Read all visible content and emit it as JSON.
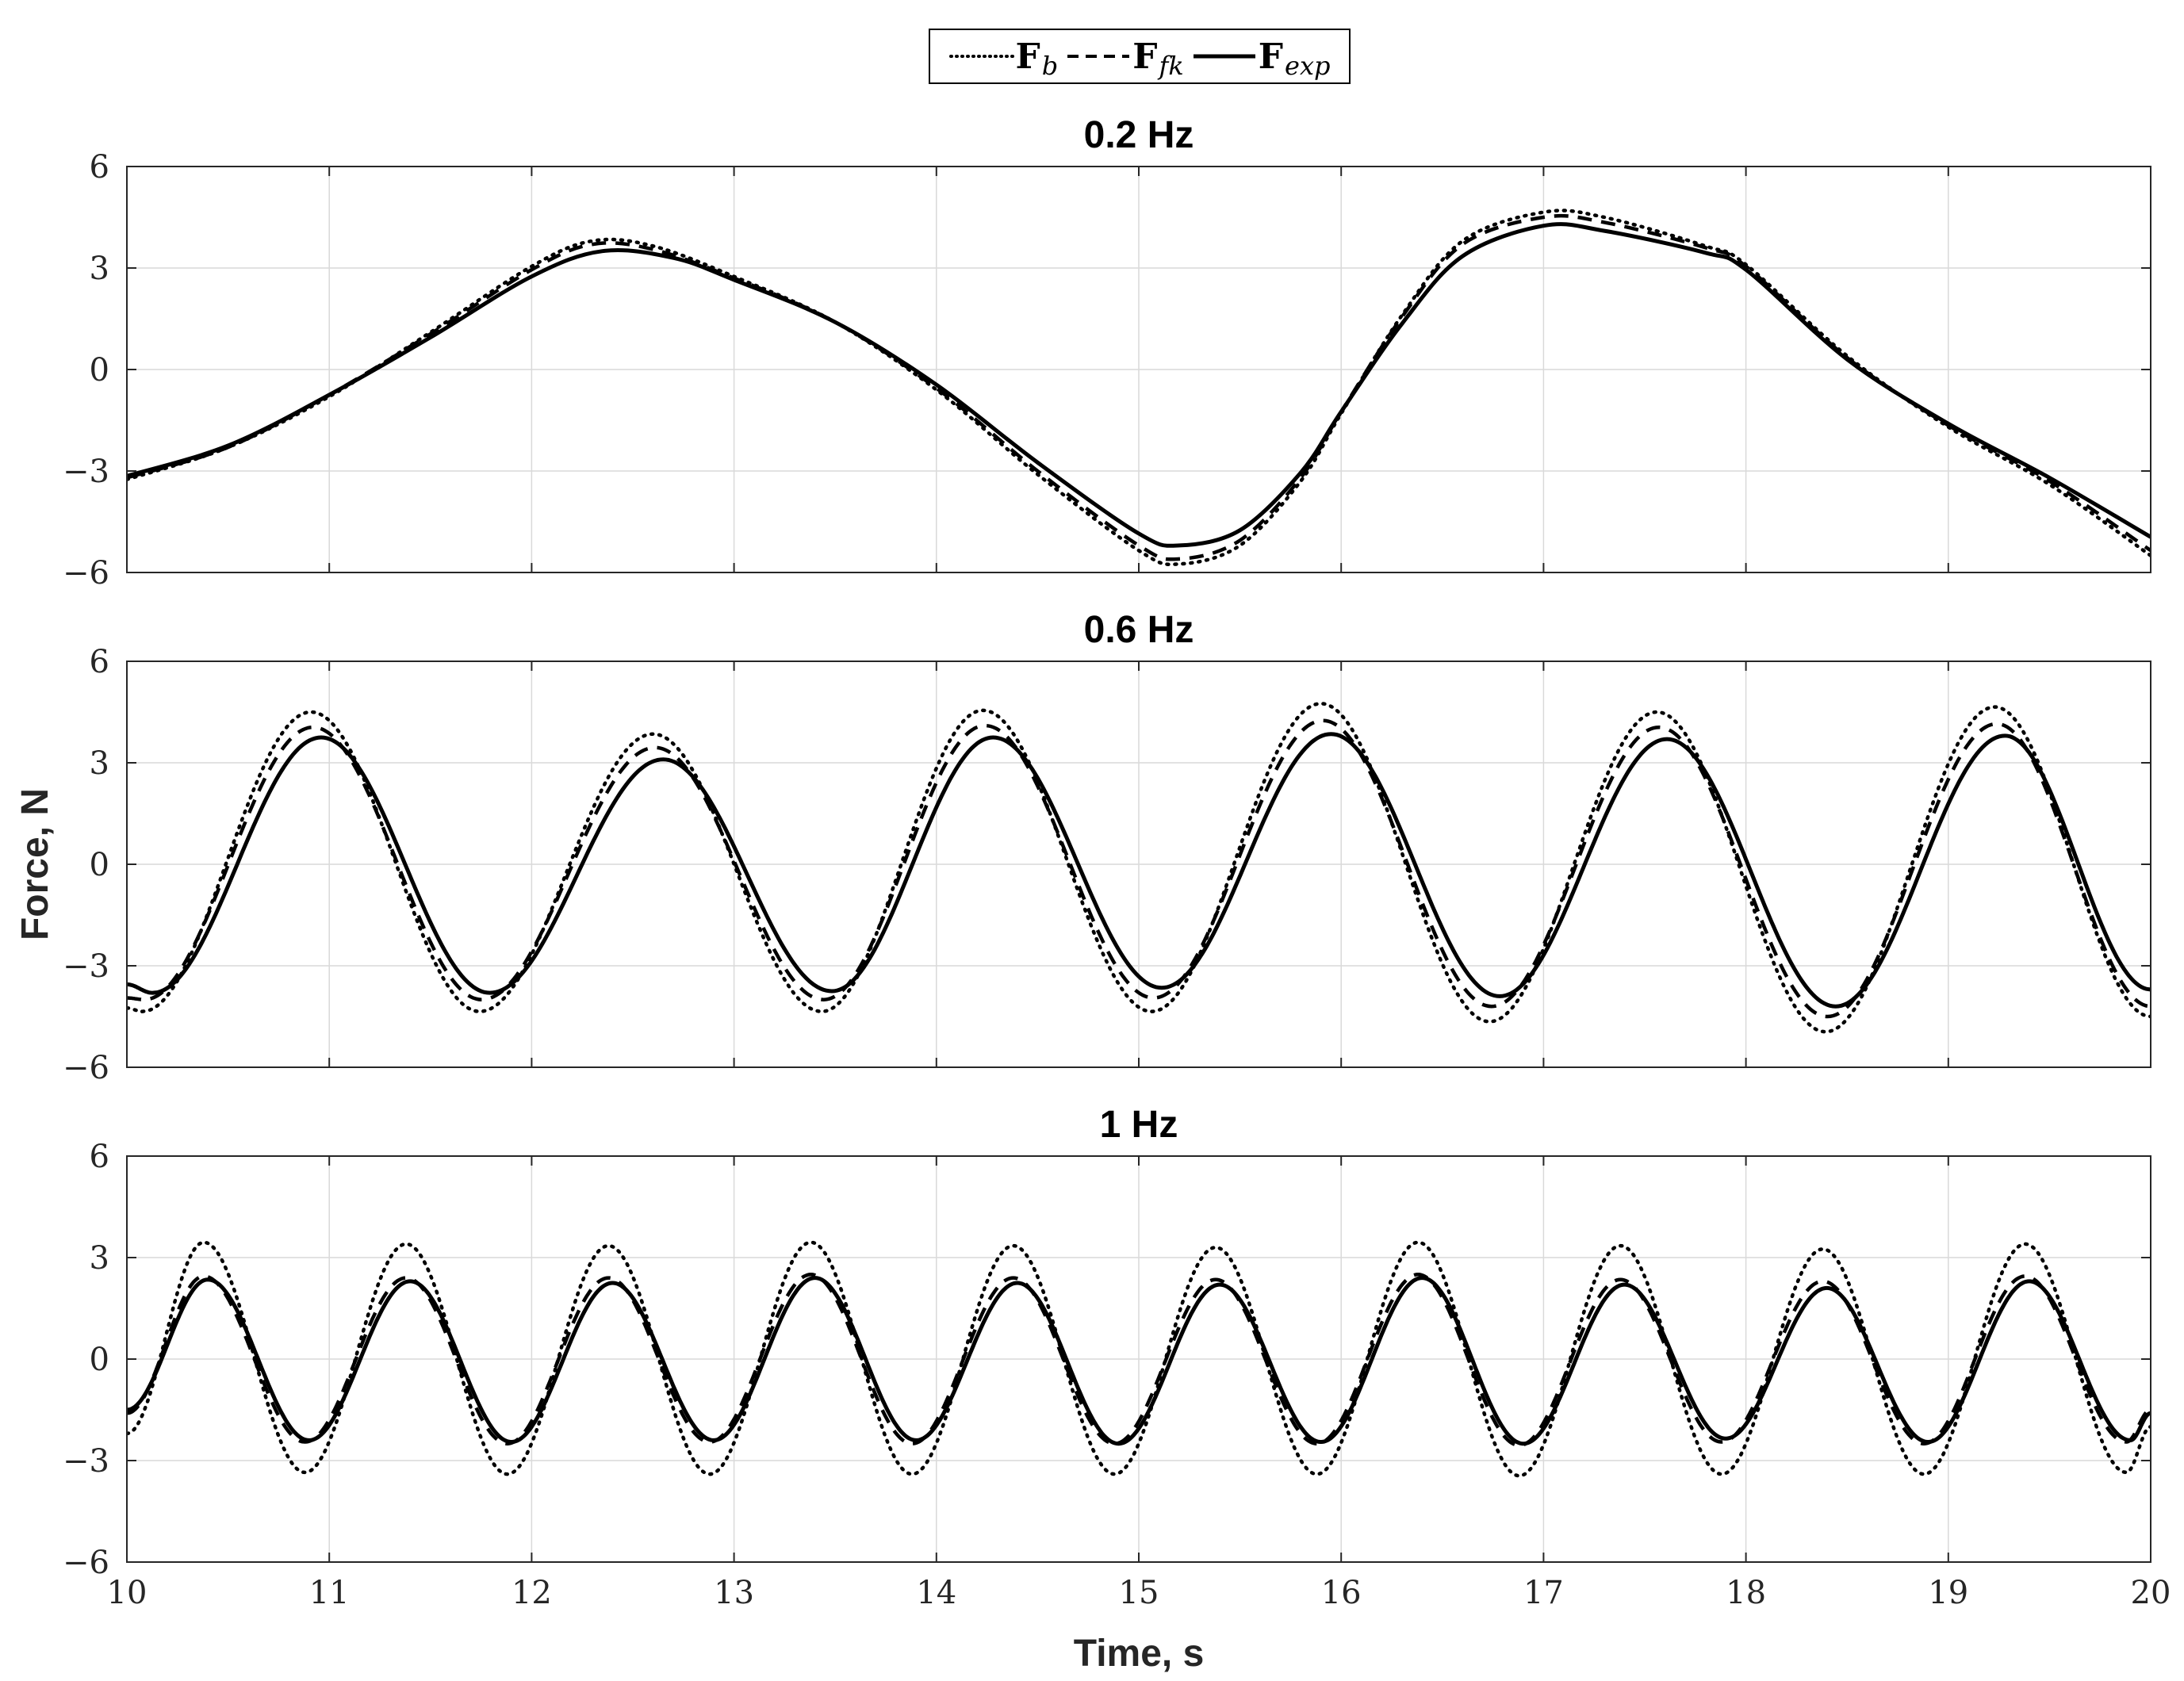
{
  "legend": {
    "items": [
      {
        "main": "F",
        "sub": "b",
        "style": "dotted"
      },
      {
        "main": "F",
        "sub": "fk",
        "style": "dashed"
      },
      {
        "main": "F",
        "sub": "exp",
        "style": "solid"
      }
    ]
  },
  "colors": {
    "line": "#000000",
    "grid": "#d9d9d9",
    "axis": "#262626",
    "background": "#ffffff"
  },
  "chart_data": {
    "type": "line",
    "ylabel": "Force, N",
    "xlabel": "Time, s",
    "xlim": [
      10,
      20
    ],
    "ylim": [
      -6,
      6
    ],
    "x_ticks": [
      10,
      11,
      12,
      13,
      14,
      15,
      16,
      17,
      18,
      19,
      20
    ],
    "y_ticks": [
      -6,
      -3,
      0,
      3,
      6
    ],
    "y_tick_labels": [
      "−6",
      "−3",
      "0",
      "3",
      "6"
    ],
    "grid": true,
    "legend_position": "top-center",
    "panels": [
      {
        "title": "0.2 Hz",
        "series": [
          {
            "name": "F_b",
            "style": "dotted",
            "points": [
              [
                10,
                -3.25
              ],
              [
                10.5,
                -2.3
              ],
              [
                11,
                -0.8
              ],
              [
                11.5,
                1.1
              ],
              [
                12,
                3.05
              ],
              [
                12.3,
                3.8
              ],
              [
                12.6,
                3.65
              ],
              [
                13,
                2.75
              ],
              [
                13.5,
                1.4
              ],
              [
                14,
                -0.6
              ],
              [
                14.5,
                -3.1
              ],
              [
                15,
                -5.35
              ],
              [
                15.2,
                -5.75
              ],
              [
                15.5,
                -5.2
              ],
              [
                15.8,
                -3.3
              ],
              [
                16,
                -1.3
              ],
              [
                16.3,
                1.6
              ],
              [
                16.6,
                3.8
              ],
              [
                17,
                4.65
              ],
              [
                17.3,
                4.5
              ],
              [
                17.8,
                3.65
              ],
              [
                18,
                3.1
              ],
              [
                18.5,
                0.4
              ],
              [
                19,
                -1.7
              ],
              [
                19.5,
                -3.4
              ],
              [
                20,
                -5.5
              ]
            ]
          },
          {
            "name": "F_fk",
            "style": "dashed",
            "points": [
              [
                10,
                -3.2
              ],
              [
                10.5,
                -2.3
              ],
              [
                11,
                -0.75
              ],
              [
                11.5,
                1.05
              ],
              [
                12,
                2.95
              ],
              [
                12.3,
                3.7
              ],
              [
                12.6,
                3.55
              ],
              [
                13,
                2.7
              ],
              [
                13.5,
                1.4
              ],
              [
                14,
                -0.55
              ],
              [
                14.5,
                -3.0
              ],
              [
                15,
                -5.2
              ],
              [
                15.2,
                -5.6
              ],
              [
                15.5,
                -5.05
              ],
              [
                15.8,
                -3.2
              ],
              [
                16,
                -1.25
              ],
              [
                16.3,
                1.55
              ],
              [
                16.6,
                3.7
              ],
              [
                17,
                4.5
              ],
              [
                17.3,
                4.35
              ],
              [
                17.8,
                3.6
              ],
              [
                18,
                3.05
              ],
              [
                18.5,
                0.35
              ],
              [
                19,
                -1.65
              ],
              [
                19.5,
                -3.3
              ],
              [
                20,
                -5.35
              ]
            ]
          },
          {
            "name": "F_exp",
            "style": "solid",
            "points": [
              [
                10,
                -3.15
              ],
              [
                10.5,
                -2.25
              ],
              [
                11,
                -0.75
              ],
              [
                11.5,
                0.95
              ],
              [
                12,
                2.75
              ],
              [
                12.35,
                3.5
              ],
              [
                12.7,
                3.3
              ],
              [
                13,
                2.65
              ],
              [
                13.5,
                1.4
              ],
              [
                14,
                -0.45
              ],
              [
                14.5,
                -2.75
              ],
              [
                15,
                -4.85
              ],
              [
                15.2,
                -5.2
              ],
              [
                15.5,
                -4.75
              ],
              [
                15.8,
                -3.05
              ],
              [
                16,
                -1.25
              ],
              [
                16.3,
                1.35
              ],
              [
                16.6,
                3.35
              ],
              [
                17,
                4.25
              ],
              [
                17.3,
                4.1
              ],
              [
                17.8,
                3.45
              ],
              [
                18,
                2.95
              ],
              [
                18.5,
                0.3
              ],
              [
                19,
                -1.6
              ],
              [
                19.5,
                -3.2
              ],
              [
                20,
                -4.95
              ]
            ]
          }
        ]
      },
      {
        "title": "0.6 Hz",
        "series": [
          {
            "name": "F_b",
            "style": "dotted",
            "freq_hz": 0.6,
            "peak_times": [
              10.93,
              12.62,
              14.25,
              15.92,
              17.58,
              19.25
            ],
            "peaks": [
              4.5,
              3.85,
              4.55,
              4.75,
              4.5,
              4.65
            ],
            "troughs": [
              -4.35,
              -4.35,
              -4.35,
              -4.65,
              -4.95,
              -4.45
            ],
            "y_start": -4.25,
            "y_end": -4.5,
            "phase_shift": -0.02
          },
          {
            "name": "F_fk",
            "style": "dashed",
            "freq_hz": 0.6,
            "peak_times": [
              10.93,
              12.62,
              14.25,
              15.92,
              17.58,
              19.25
            ],
            "peaks": [
              4.05,
              3.45,
              4.1,
              4.25,
              4.05,
              4.15
            ],
            "troughs": [
              -4.0,
              -4.0,
              -3.95,
              -4.2,
              -4.5,
              -4.05
            ],
            "y_start": -3.95,
            "y_end": -4.2,
            "phase_shift": -0.01
          },
          {
            "name": "F_exp",
            "style": "solid",
            "freq_hz": 0.6,
            "peak_times": [
              10.93,
              12.62,
              14.25,
              15.92,
              17.58,
              19.25
            ],
            "peaks": [
              3.75,
              3.1,
              3.75,
              3.85,
              3.7,
              3.8
            ],
            "troughs": [
              -3.8,
              -3.75,
              -3.65,
              -3.9,
              -4.2,
              -3.85
            ],
            "y_start": -3.55,
            "y_end": -3.7,
            "phase_shift": 0.03
          }
        ]
      },
      {
        "title": "1 Hz",
        "series": [
          {
            "name": "F_b",
            "style": "dotted",
            "freq_hz": 1.0,
            "peak_times": [
              10.38,
              11.38,
              12.38,
              13.38,
              14.38,
              15.38,
              16.38,
              17.38,
              18.38,
              19.38
            ],
            "peaks": [
              3.45,
              3.4,
              3.35,
              3.45,
              3.35,
              3.3,
              3.45,
              3.35,
              3.25,
              3.4
            ],
            "troughs": [
              -3.35,
              -3.4,
              -3.4,
              -3.4,
              -3.4,
              -3.4,
              -3.45,
              -3.4,
              -3.4,
              -3.35
            ],
            "y_start": -2.2,
            "y_end": -2.0,
            "phase_shift": 0.0
          },
          {
            "name": "F_fk",
            "style": "dashed",
            "freq_hz": 1.0,
            "peak_times": [
              10.38,
              11.38,
              12.38,
              13.38,
              14.38,
              15.38,
              16.38,
              17.38,
              18.38,
              19.38
            ],
            "peaks": [
              2.45,
              2.4,
              2.4,
              2.5,
              2.4,
              2.35,
              2.5,
              2.35,
              2.3,
              2.45
            ],
            "troughs": [
              -2.45,
              -2.5,
              -2.45,
              -2.5,
              -2.5,
              -2.5,
              -2.55,
              -2.45,
              -2.5,
              -2.45
            ],
            "y_start": -1.6,
            "y_end": -1.5,
            "phase_shift": 0.0
          },
          {
            "name": "F_exp",
            "style": "solid",
            "freq_hz": 1.0,
            "peak_times": [
              10.38,
              11.38,
              12.38,
              13.38,
              14.38,
              15.38,
              16.38,
              17.38,
              18.38,
              19.38
            ],
            "peaks": [
              2.35,
              2.3,
              2.25,
              2.4,
              2.25,
              2.2,
              2.4,
              2.2,
              2.1,
              2.3
            ],
            "troughs": [
              -2.4,
              -2.45,
              -2.4,
              -2.4,
              -2.5,
              -2.45,
              -2.5,
              -2.35,
              -2.45,
              -2.4
            ],
            "y_start": -1.5,
            "y_end": -1.6,
            "phase_shift": 0.02
          }
        ]
      }
    ]
  }
}
